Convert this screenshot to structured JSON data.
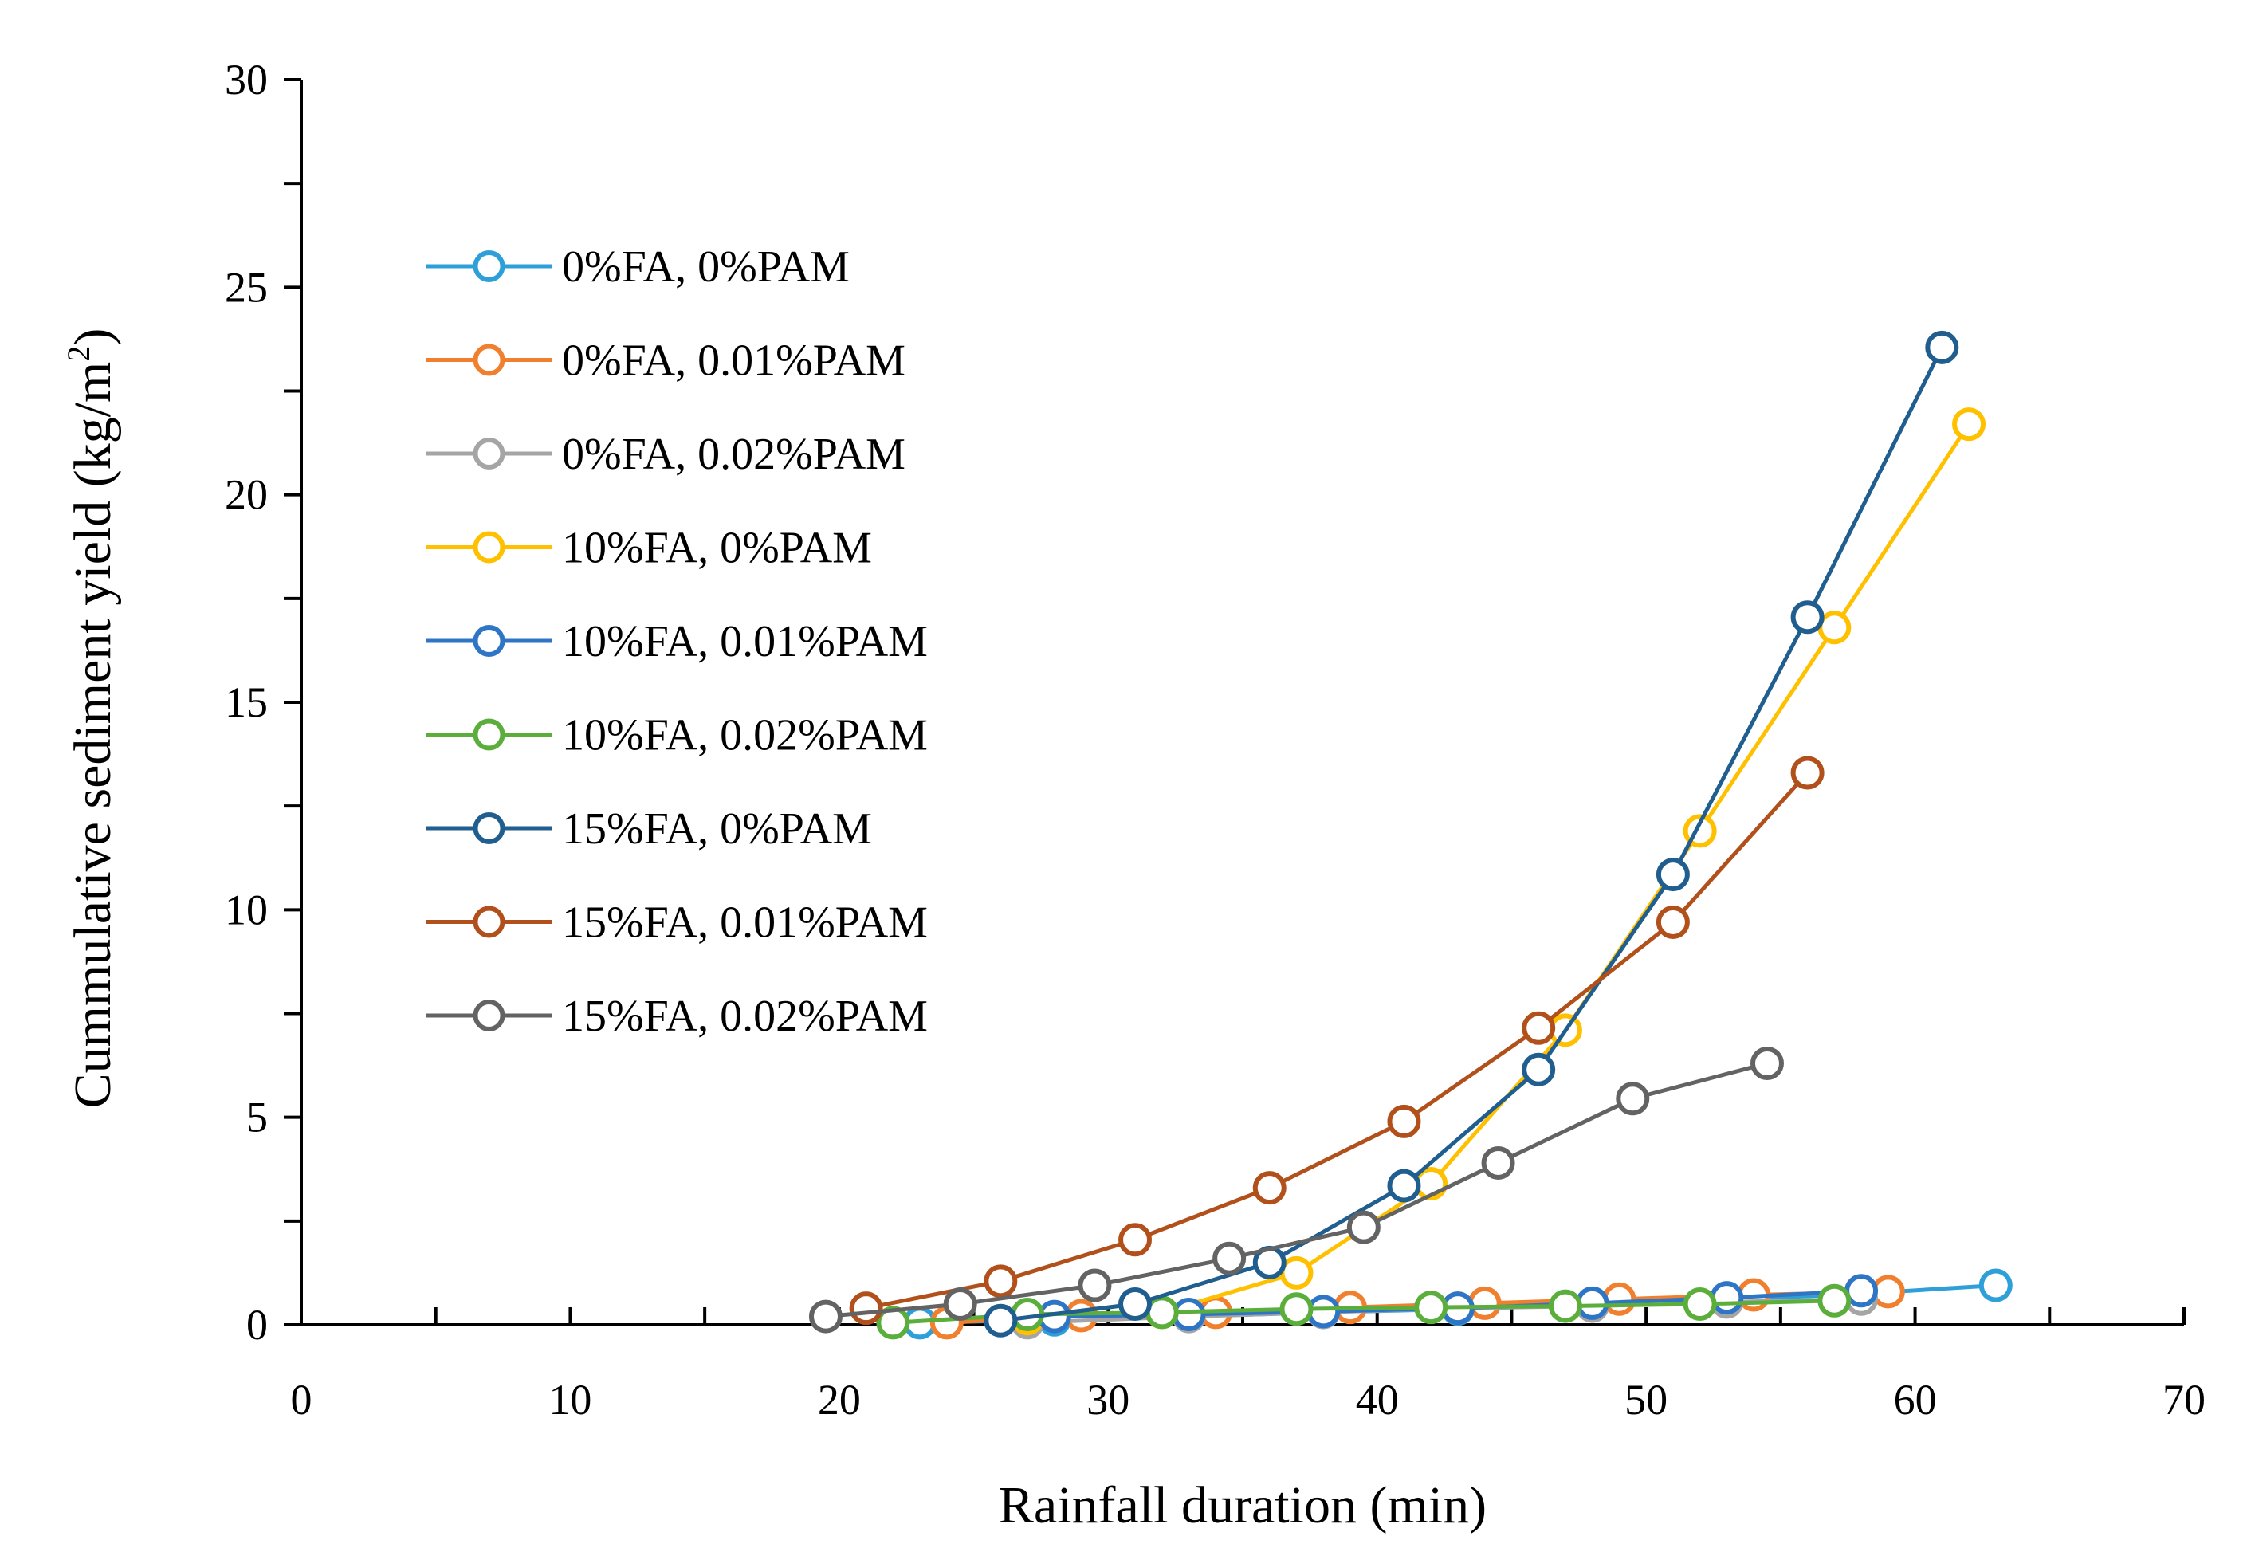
{
  "chart_data": {
    "type": "line",
    "title": "",
    "xlabel": "Rainfall duration (min)",
    "ylabel_main": "Cummulative sediment yield (kg/m",
    "ylabel_sup": "2",
    "ylabel_close": ")",
    "xlim": [
      0,
      70
    ],
    "ylim": [
      0,
      30
    ],
    "xticks": [
      0,
      10,
      20,
      30,
      40,
      50,
      60,
      70
    ],
    "yticks": [
      0,
      5,
      10,
      15,
      20,
      25,
      30
    ],
    "grid": false,
    "legend_position": "top-left",
    "series": [
      {
        "name": "0%FA, 0%PAM",
        "color": "#2E9FD8",
        "x": [
          23,
          28,
          33,
          38,
          43,
          48,
          53,
          58,
          63
        ],
        "y": [
          0.05,
          0.12,
          0.2,
          0.3,
          0.38,
          0.48,
          0.6,
          0.75,
          0.95
        ]
      },
      {
        "name": "0%FA, 0.01%PAM",
        "color": "#F07F2E",
        "x": [
          24,
          29,
          34,
          39,
          44,
          49,
          54,
          59
        ],
        "y": [
          0.05,
          0.22,
          0.3,
          0.42,
          0.52,
          0.62,
          0.72,
          0.8
        ]
      },
      {
        "name": "0%FA, 0.02%PAM",
        "color": "#A5A5A5",
        "x": [
          27,
          33,
          38,
          43,
          48,
          53,
          58
        ],
        "y": [
          0.05,
          0.2,
          0.3,
          0.4,
          0.45,
          0.55,
          0.62
        ]
      },
      {
        "name": "10%FA, 0%PAM",
        "color": "#FFC000",
        "x": [
          27,
          32,
          37,
          42,
          47,
          52,
          57,
          62
        ],
        "y": [
          0.15,
          0.3,
          1.25,
          3.4,
          7.1,
          11.9,
          16.8,
          21.7
        ]
      },
      {
        "name": "10%FA, 0.01%PAM",
        "color": "#2E75C6",
        "x": [
          28,
          33,
          38,
          43,
          48,
          53,
          58
        ],
        "y": [
          0.2,
          0.25,
          0.32,
          0.4,
          0.52,
          0.65,
          0.82
        ]
      },
      {
        "name": "10%FA, 0.02%PAM",
        "color": "#5BAE3C",
        "x": [
          22,
          27,
          32,
          37,
          42,
          47,
          52,
          57
        ],
        "y": [
          0.05,
          0.25,
          0.3,
          0.38,
          0.42,
          0.45,
          0.5,
          0.58
        ]
      },
      {
        "name": "15%FA, 0%PAM",
        "color": "#1F5E8E",
        "x": [
          26,
          31,
          36,
          41,
          46,
          51,
          56,
          61
        ],
        "y": [
          0.1,
          0.5,
          1.5,
          3.35,
          6.15,
          10.85,
          17.05,
          23.55
        ]
      },
      {
        "name": "15%FA, 0.01%PAM",
        "color": "#B2501B",
        "x": [
          21,
          26,
          31,
          36,
          41,
          46,
          51,
          56
        ],
        "y": [
          0.4,
          1.05,
          2.05,
          3.3,
          4.9,
          7.15,
          9.7,
          13.3
        ]
      },
      {
        "name": "15%FA, 0.02%PAM",
        "color": "#636363",
        "x": [
          19.5,
          24.5,
          29.5,
          34.5,
          39.5,
          44.5,
          49.5,
          54.5
        ],
        "y": [
          0.2,
          0.5,
          0.95,
          1.6,
          2.35,
          3.9,
          5.45,
          6.3
        ]
      }
    ]
  }
}
